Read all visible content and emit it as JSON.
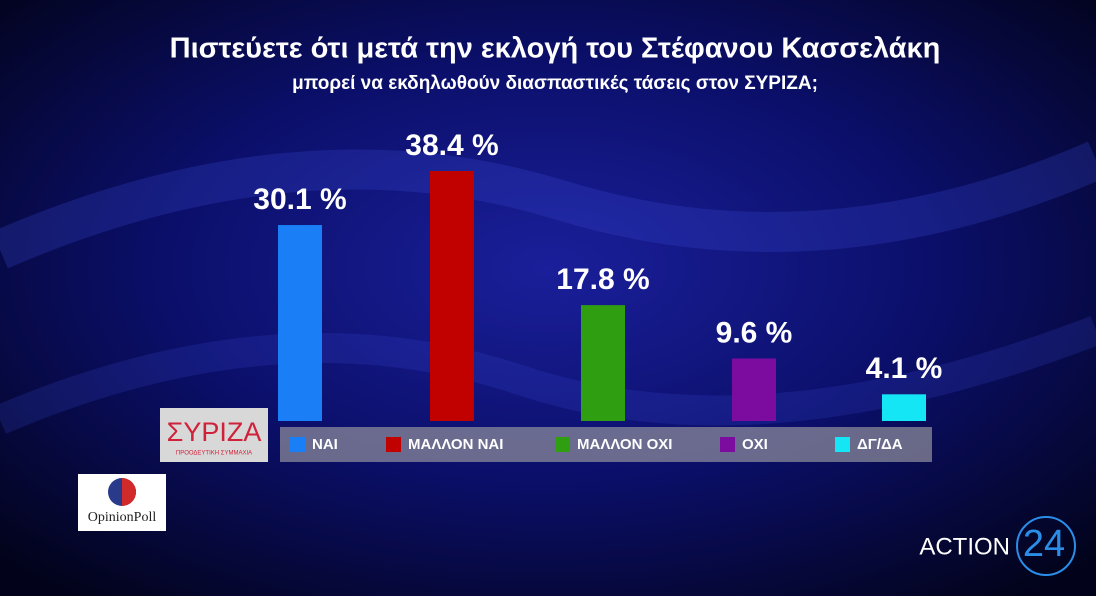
{
  "chart_data": {
    "type": "bar",
    "title": "Πιστεύετε ότι μετά την εκλογή του Στέφανου Κασσελάκη",
    "subtitle": "μπορεί να εκδηλωθούν διασπαστικές τάσεις στον ΣΥΡΙΖΑ;",
    "categories": [
      "ΝΑΙ",
      "ΜΑΛΛΟΝ ΝΑΙ",
      "ΜΑΛΛΟΝ ΟΧΙ",
      "ΟΧΙ",
      "ΔΓ/ΔΑ"
    ],
    "values": [
      30.1,
      38.4,
      17.8,
      9.6,
      4.1
    ],
    "value_labels": [
      "30.1 %",
      "38.4 %",
      "17.8 %",
      "9.6 %",
      "4.1 %"
    ],
    "colors": [
      "#1a7ef6",
      "#c10000",
      "#2f9e10",
      "#7b0c9f",
      "#14e6f5"
    ]
  },
  "logos": {
    "party": "ΣΥΡΙΖΑ",
    "party_subtitle": "ΠΡΟΟΔΕΥΤΙΚΗ ΣΥΜΜΑΧΙΑ",
    "pollster": "OpinionPoll",
    "channel": "ACTION",
    "channel_number": "24"
  }
}
